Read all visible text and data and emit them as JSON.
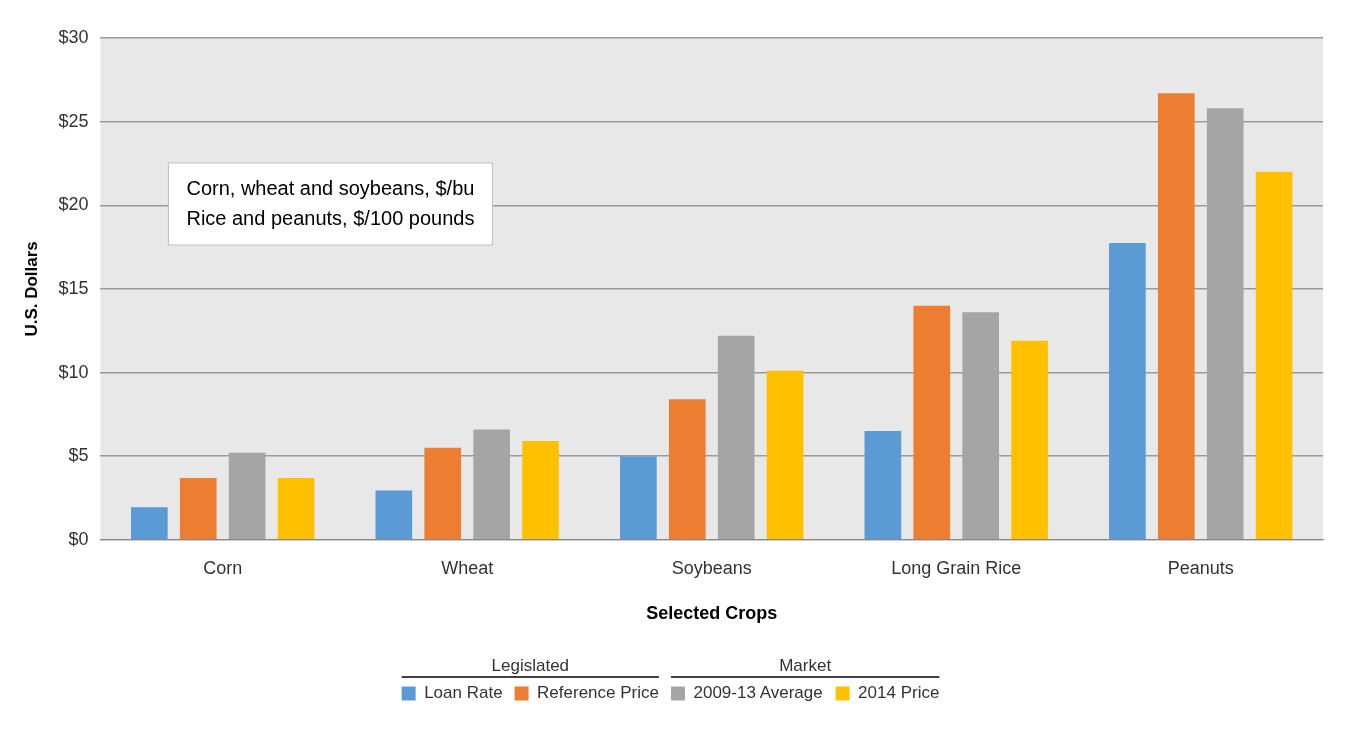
{
  "chart_data": {
    "type": "bar",
    "xlabel": "Selected Crops",
    "ylabel": "U.S. Dollars",
    "categories": [
      "Corn",
      "Wheat",
      "Soybeans",
      "Long Grain Rice",
      "Peanuts"
    ],
    "series": [
      {
        "name": "Loan Rate",
        "color": "#5b9bd5",
        "values": [
          1.95,
          2.94,
          5.0,
          6.5,
          17.75
        ]
      },
      {
        "name": "Reference Price",
        "color": "#ed7d31",
        "values": [
          3.7,
          5.5,
          8.4,
          14.0,
          26.7
        ]
      },
      {
        "name": "2009-13 Average",
        "color": "#a5a5a5",
        "values": [
          5.2,
          6.6,
          12.2,
          13.6,
          25.8
        ]
      },
      {
        "name": "2014 Price",
        "color": "#ffc000",
        "values": [
          3.7,
          5.9,
          10.1,
          11.9,
          22.0
        ]
      }
    ],
    "ylim": [
      0,
      30
    ],
    "yticks": [
      {
        "value": 0,
        "label": "$0"
      },
      {
        "value": 5,
        "label": "$5"
      },
      {
        "value": 10,
        "label": "$10"
      },
      {
        "value": 15,
        "label": "$15"
      },
      {
        "value": 20,
        "label": "$20"
      },
      {
        "value": 25,
        "label": "$25"
      },
      {
        "value": 30,
        "label": "$30"
      }
    ],
    "grid": "y",
    "legend": "bottom",
    "annotations": [
      "Corn, wheat and soybeans, $/bu\nRice and peanuts, $/100 pounds",
      "Legislated",
      "Market"
    ]
  }
}
